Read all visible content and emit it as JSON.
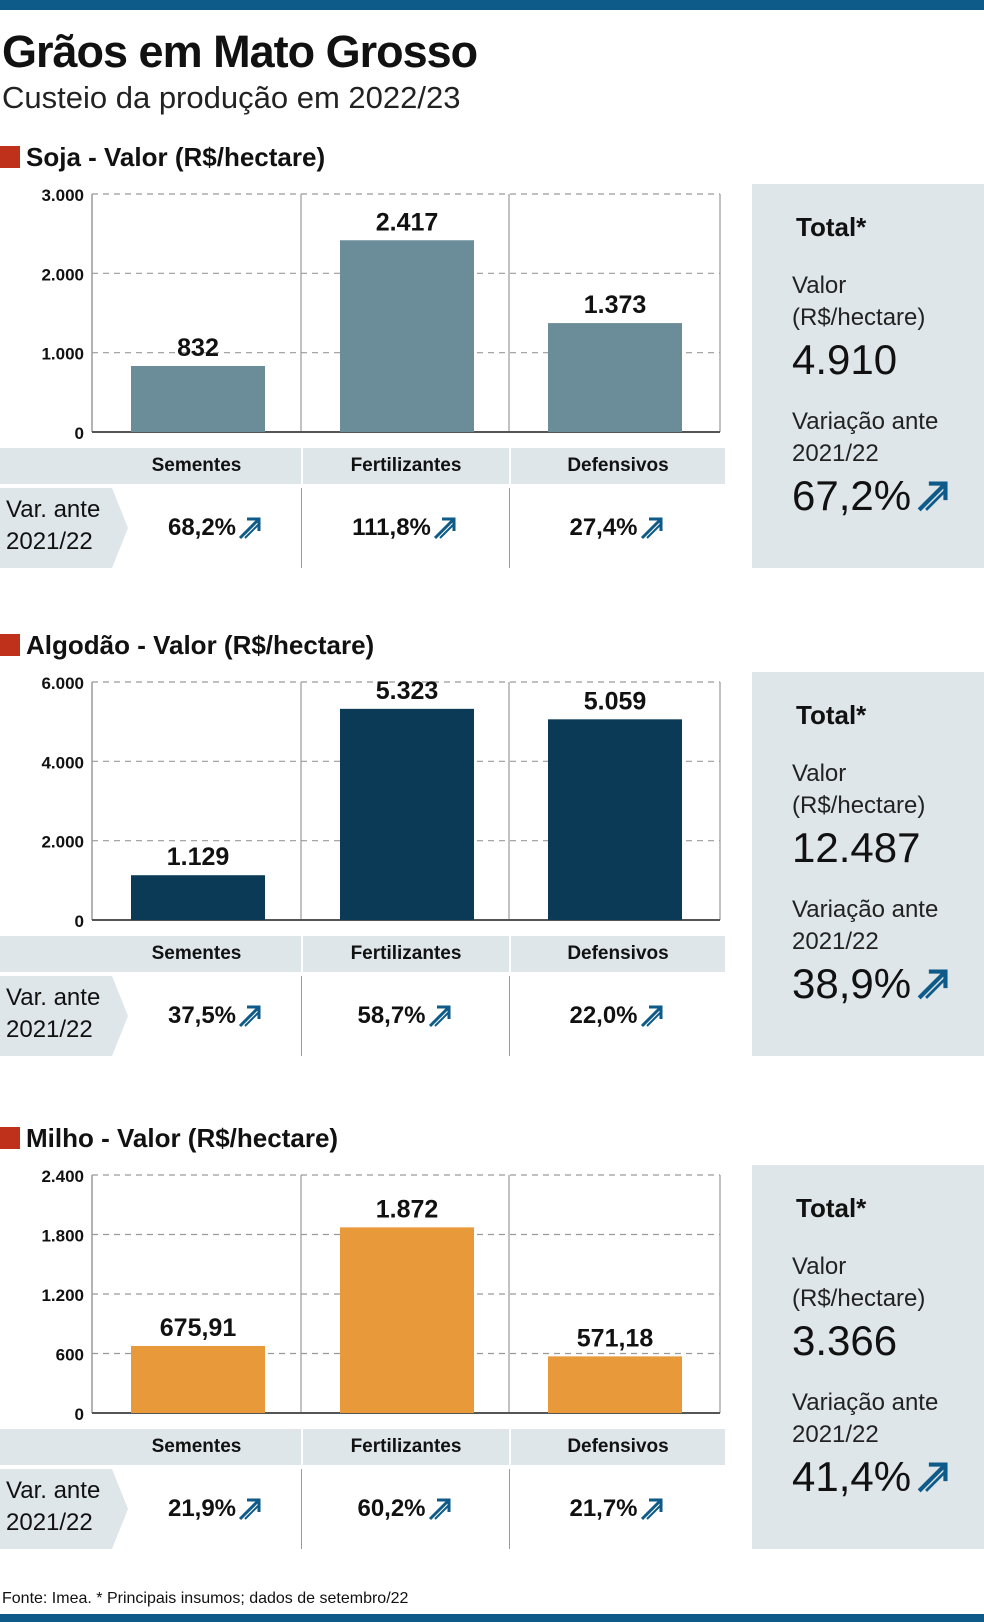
{
  "title": "Grãos em Mato Grosso",
  "subtitle": "Custeio da produção em 2022/23",
  "footer": "Fonte: Imea. * Principais insumos; dados de setembro/22",
  "total_heading": "Total*",
  "total_value_label": "Valor\n(R$/hectare)",
  "total_var_label": "Variação ante\n2021/22",
  "var_row_label": "Var. ante\n2021/22",
  "colors": {
    "soja": "#6b8d9a",
    "algodao": "#0b3a57",
    "milho": "#e89a3a",
    "accent": "#0e5a88",
    "marker": "#c0311b"
  },
  "icons": {
    "trend": "up-right-arrow-icon"
  },
  "sections": [
    {
      "key": "soja",
      "title": "Soja - Valor (R$/hectare)",
      "total_value": "4.910",
      "total_var": "67,2%",
      "variations": [
        "68,2%",
        "111,8%",
        "27,4%"
      ]
    },
    {
      "key": "algodao",
      "title": "Algodão - Valor (R$/hectare)",
      "total_value": "12.487",
      "total_var": "38,9%",
      "variations": [
        "37,5%",
        "58,7%",
        "22,0%"
      ]
    },
    {
      "key": "milho",
      "title": "Milho - Valor (R$/hectare)",
      "total_value": "3.366",
      "total_var": "41,4%",
      "variations": [
        "21,9%",
        "60,2%",
        "21,7%"
      ]
    }
  ],
  "chart_data": [
    {
      "type": "bar",
      "title": "Soja - Valor (R$/hectare)",
      "categories": [
        "Sementes",
        "Fertilizantes",
        "Defensivos"
      ],
      "values": [
        832,
        2417,
        1373
      ],
      "value_labels": [
        "832",
        "2.417",
        "1.373"
      ],
      "ylim": [
        0,
        3000
      ],
      "yticks": [
        0,
        1000,
        2000,
        3000
      ],
      "ytick_labels": [
        "0",
        "1.000",
        "2.000",
        "3.000"
      ],
      "color": "#6b8d9a",
      "grid": true
    },
    {
      "type": "bar",
      "title": "Algodão - Valor (R$/hectare)",
      "categories": [
        "Sementes",
        "Fertilizantes",
        "Defensivos"
      ],
      "values": [
        1129,
        5323,
        5059
      ],
      "value_labels": [
        "1.129",
        "5.323",
        "5.059"
      ],
      "ylim": [
        0,
        6000
      ],
      "yticks": [
        0,
        2000,
        4000,
        6000
      ],
      "ytick_labels": [
        "0",
        "2.000",
        "4.000",
        "6.000"
      ],
      "color": "#0b3a57",
      "grid": true
    },
    {
      "type": "bar",
      "title": "Milho - Valor (R$/hectare)",
      "categories": [
        "Sementes",
        "Fertilizantes",
        "Defensivos"
      ],
      "values": [
        675.91,
        1872,
        571.18
      ],
      "value_labels": [
        "675,91",
        "1.872",
        "571,18"
      ],
      "ylim": [
        0,
        2400
      ],
      "yticks": [
        0,
        600,
        1200,
        1800,
        2400
      ],
      "ytick_labels": [
        "0",
        "600",
        "1.200",
        "1.800",
        "2.400"
      ],
      "color": "#e89a3a",
      "grid": true
    }
  ]
}
